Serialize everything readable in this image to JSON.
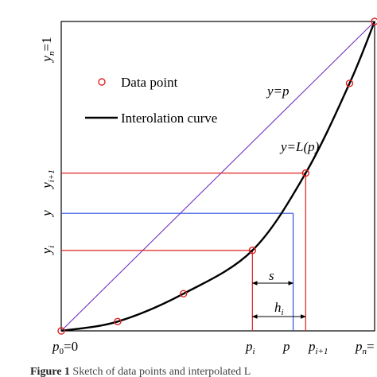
{
  "chart_data": {
    "type": "line",
    "grid": false,
    "xlim": [
      0,
      1
    ],
    "ylim": [
      0,
      1
    ],
    "legend_placement": "top-left",
    "legend": [
      {
        "label": "Data point",
        "marker": "open-circle",
        "color": "#e02020"
      },
      {
        "label": "Interolation curve",
        "marker": "line",
        "color": "#000000"
      }
    ],
    "series": [
      {
        "name": "Data point",
        "kind": "scatter",
        "x": [
          0.0,
          0.18,
          0.39,
          0.61,
          0.78,
          0.92,
          1.0
        ],
        "y": [
          0.0,
          0.03,
          0.12,
          0.26,
          0.51,
          0.8,
          1.0
        ]
      },
      {
        "name": "Interolation curve",
        "kind": "line",
        "x": [
          0.0,
          0.18,
          0.39,
          0.61,
          0.78,
          0.92,
          1.0
        ],
        "y": [
          0.0,
          0.03,
          0.12,
          0.26,
          0.51,
          0.8,
          1.0
        ]
      },
      {
        "name": "y=p",
        "kind": "line",
        "x": [
          0,
          1
        ],
        "y": [
          0,
          1
        ]
      }
    ],
    "colors": {
      "points": "#e02020",
      "curve": "#000000",
      "diagonal": "#7030c0",
      "red_guides": "#e02020",
      "blue_guides": "#3050e0"
    },
    "guides": {
      "p_i": 0.61,
      "y_i": 0.26,
      "p_i1": 0.78,
      "y_i1": 0.51,
      "p": 0.74,
      "y": 0.38
    },
    "annotations": {
      "y_eq_p": {
        "base": "y=p"
      },
      "y_eq_L": {
        "base": "y=L(p)"
      },
      "s": "s",
      "h": {
        "base": "h",
        "sub": "i"
      }
    },
    "x_ticks": {
      "p0": {
        "base": "p",
        "sub": "0",
        "suffix": "=0"
      },
      "pi": {
        "base": "p",
        "sub": "i"
      },
      "p": {
        "base": "p"
      },
      "pi1": {
        "base": "p",
        "sub": "i+1"
      },
      "pn": {
        "base": "p",
        "sub": "n",
        "suffix": "="
      }
    },
    "y_ticks": {
      "yn": {
        "base": "y",
        "sub": "n",
        "suffix": "=1"
      },
      "yi1": {
        "base": "y",
        "sub": "i+1"
      },
      "y": {
        "base": "y"
      },
      "yi": {
        "base": "y",
        "sub": "i"
      }
    },
    "caption": {
      "bold": "Figure 1",
      "text": " Sketch of data points and interpolated L"
    }
  }
}
